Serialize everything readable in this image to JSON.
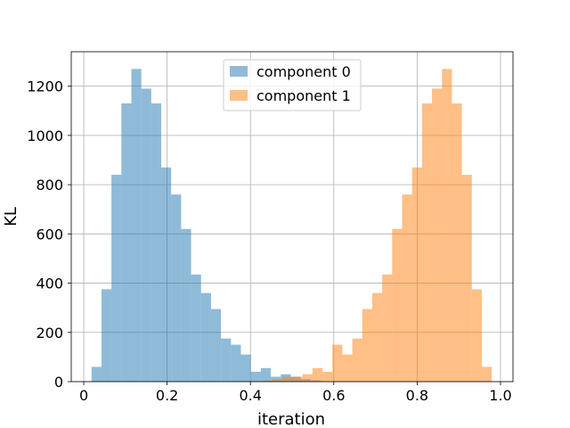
{
  "chart_data": {
    "type": "histogram",
    "xlabel": "iteration",
    "ylabel": "KL",
    "xlim": [
      -0.03,
      1.03
    ],
    "ylim": [
      0,
      1340
    ],
    "xticks": [
      0,
      0.2,
      0.4,
      0.6,
      0.8,
      1.0
    ],
    "xtick_labels": [
      "0",
      "0.2",
      "0.4",
      "0.6",
      "0.8",
      "1.0"
    ],
    "yticks": [
      0,
      200,
      400,
      600,
      800,
      1000,
      1200
    ],
    "ytick_labels": [
      "0",
      "200",
      "400",
      "600",
      "800",
      "1000",
      "1200"
    ],
    "grid": true,
    "legend_position": "top-center",
    "alpha": 0.5,
    "series": [
      {
        "name": "component 0",
        "color": "#1f77b4",
        "bin_edges": [
          0.0186,
          0.0425,
          0.0664,
          0.0903,
          0.1142,
          0.1381,
          0.162,
          0.1859,
          0.2098,
          0.2337,
          0.2576,
          0.2815,
          0.3054,
          0.3293,
          0.3532,
          0.3771,
          0.401,
          0.4249,
          0.4488,
          0.4727,
          0.4966,
          0.5205,
          0.5444,
          0.5683
        ],
        "counts": [
          60,
          375,
          840,
          1130,
          1270,
          1190,
          1130,
          870,
          760,
          620,
          435,
          360,
          295,
          175,
          150,
          110,
          40,
          55,
          20,
          30,
          20,
          10,
          5
        ]
      },
      {
        "name": "component 1",
        "color": "#ff7f0e",
        "bin_edges": [
          0.4293,
          0.4532,
          0.4771,
          0.501,
          0.5249,
          0.5488,
          0.5727,
          0.5966,
          0.6205,
          0.6444,
          0.6683,
          0.6922,
          0.7161,
          0.74,
          0.7639,
          0.7878,
          0.8117,
          0.8356,
          0.8595,
          0.8834,
          0.9073,
          0.9312,
          0.9551,
          0.979
        ],
        "counts": [
          5,
          10,
          20,
          20,
          30,
          55,
          40,
          150,
          110,
          175,
          295,
          360,
          435,
          620,
          760,
          870,
          1130,
          1190,
          1270,
          1130,
          840,
          375,
          60
        ]
      }
    ]
  }
}
